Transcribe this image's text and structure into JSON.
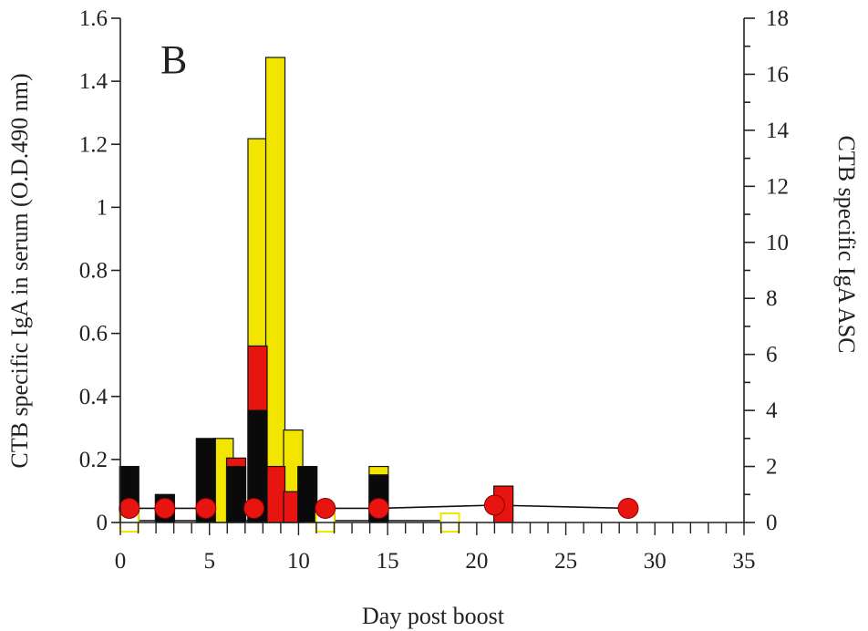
{
  "chart_data": {
    "type": "bar",
    "panel_label": "B",
    "xlabel": "Day post boost",
    "ylabel_left": "CTB specific IgA in serum (O.D.490 nm)",
    "ylabel_right": "CTB specific IgA ASC",
    "xlim": [
      0,
      35
    ],
    "ylim_left": [
      0,
      1.6
    ],
    "ylim_right": [
      0,
      18
    ],
    "x_ticks": [
      "0",
      "5",
      "10",
      "15",
      "20",
      "25",
      "30",
      "35"
    ],
    "y_left_ticks": [
      "0",
      "0.2",
      "0.4",
      "0.6",
      "0.8",
      "1",
      "1.2",
      "1.4",
      "1.6"
    ],
    "y_right_ticks": [
      "0",
      "2",
      "4",
      "6",
      "8",
      "10",
      "12",
      "14",
      "16",
      "18"
    ],
    "colors": {
      "yellow": "#f2e600",
      "red": "#e8140f",
      "black": "#0a0a0a",
      "line": "#111111"
    },
    "bar_series": [
      {
        "color": "black",
        "x": [
          0.5,
          2.5,
          4.8,
          6.5,
          7.7,
          10.5,
          11.5,
          14.5
        ],
        "values": [
          2,
          1,
          3,
          2,
          4,
          2,
          0.3,
          1.7
        ]
      },
      {
        "color": "yellow",
        "x": [
          5.8,
          7.7,
          8.7,
          9.7,
          14.5
        ],
        "values": [
          3,
          13.7,
          16.6,
          3.3,
          2
        ]
      },
      {
        "color": "red",
        "x": [
          6.5,
          7.7,
          8.7,
          9.7,
          21.5
        ],
        "values": [
          2.3,
          6.3,
          2,
          1.1,
          1.3
        ]
      }
    ],
    "circle_series": {
      "color": "red",
      "x": [
        0.5,
        2.5,
        4.8,
        7.5,
        11.5,
        14.5,
        21,
        28.5
      ],
      "values": [
        0.045,
        0.045,
        0.045,
        0.045,
        0.045,
        0.045,
        0.055,
        0.045
      ]
    },
    "open_square_series": {
      "color": "yellow",
      "x": [
        0.5,
        11.5,
        18.5
      ],
      "values": [
        0,
        0,
        0
      ]
    }
  }
}
